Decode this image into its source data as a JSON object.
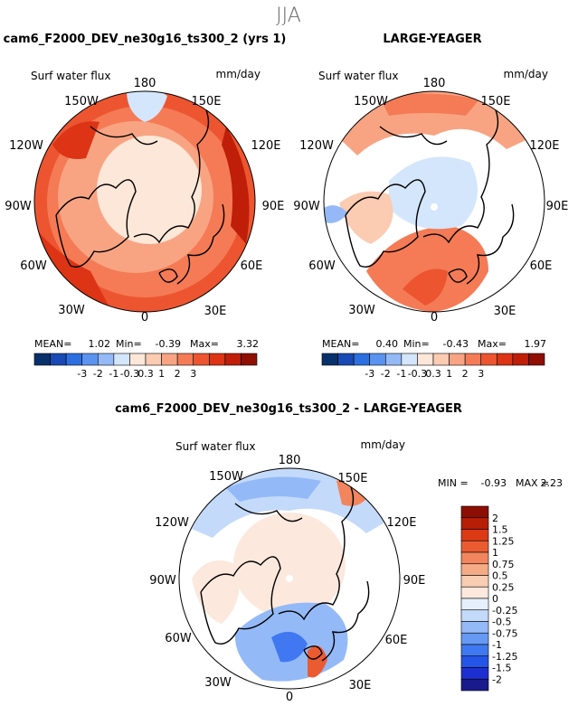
{
  "season": "JJA",
  "colors": {
    "seq": [
      "#08306b",
      "#1849b5",
      "#2c6fe0",
      "#5a93f0",
      "#94b9f6",
      "#d4e6fb",
      "#fde7d8",
      "#fbcbb2",
      "#f8a483",
      "#f47b55",
      "#ec5530",
      "#dc3414",
      "#bf1e08",
      "#8f0f02"
    ],
    "diff": [
      "#1a1a8c",
      "#1d2fd1",
      "#2455e8",
      "#3f78f0",
      "#6699f4",
      "#94b9f7",
      "#c4dafb",
      "#e6f0fd",
      "#fce8dc",
      "#f9cdb2",
      "#f6ab87",
      "#f2855d",
      "#eb5b32",
      "#dc3a15",
      "#b81d06",
      "#8c0e02"
    ]
  },
  "lon_labels": [
    "180",
    "150E",
    "120E",
    "90E",
    "60E",
    "30E",
    "0",
    "30W",
    "60W",
    "90W",
    "120W",
    "150W"
  ],
  "chart_data": [
    {
      "type": "map",
      "projection": "north-polar-stereographic",
      "title": "cam6_F2000_DEV_ne30g16_ts300_2 (yrs 1)",
      "label_left": "Surf water flux",
      "label_right": "mm/day",
      "mean_label": "MEAN=",
      "mean": "1.02",
      "min_label": "Min=",
      "min": "-0.39",
      "max_label": "Max=",
      "max": "3.32",
      "levels": [
        "-3",
        "-2",
        "-1",
        "-0.3",
        "0.3",
        "1",
        "2",
        "3"
      ]
    },
    {
      "type": "map",
      "projection": "north-polar-stereographic",
      "title": "LARGE-YEAGER",
      "label_left": "Surf water flux",
      "label_right": "mm/day",
      "mean_label": "MEAN=",
      "mean": "0.40",
      "min_label": "Min=",
      "min": "-0.43",
      "max_label": "Max=",
      "max": "1.97",
      "levels": [
        "-3",
        "-2",
        "-1",
        "-0.3",
        "0.3",
        "1",
        "2",
        "3"
      ]
    },
    {
      "type": "map",
      "projection": "north-polar-stereographic",
      "title": "cam6_F2000_DEV_ne30g16_ts300_2 - LARGE-YEAGER",
      "label_left": "Surf water flux",
      "label_right": "mm/day",
      "min_label": "MIN =",
      "min": "-0.93",
      "max_label": "MAX =",
      "max": "2.23",
      "levels": [
        "2",
        "1.5",
        "1.25",
        "1",
        "0.75",
        "0.5",
        "0.25",
        "0",
        "-0.25",
        "-0.5",
        "-0.75",
        "-1",
        "-1.25",
        "-1.5",
        "-2"
      ]
    }
  ]
}
